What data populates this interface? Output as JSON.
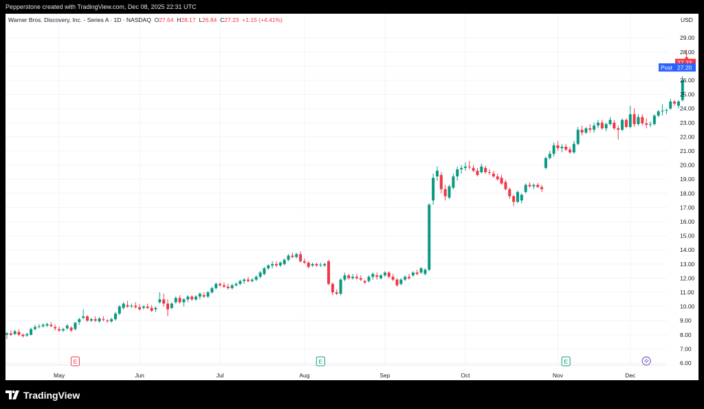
{
  "header": {
    "credit": "Pepperstone created with TradingView.com, Dec 08, 2025 22:31 UTC"
  },
  "legend": {
    "symbol": "Warner Bros. Discovery, Inc. - Series A · 1D · NASDAQ",
    "o_label": "O",
    "o": "27.64",
    "h_label": "H",
    "h": "28.17",
    "l_label": "L",
    "l": "26.84",
    "c_label": "C",
    "c": "27.23",
    "change": "+1.15 (+4.41%)"
  },
  "footer": {
    "brand": "TradingView"
  },
  "colors": {
    "up": "#089981",
    "down": "#f23645",
    "post": "#2962ff",
    "accent": "#7e57c2",
    "grid": "#f0f3fa"
  },
  "chart_data": {
    "type": "candlestick",
    "currency": "USD",
    "ylim": [
      5.5,
      30
    ],
    "yticks": [
      "6.00",
      "7.00",
      "8.00",
      "9.00",
      "10.00",
      "11.00",
      "12.00",
      "13.00",
      "14.00",
      "15.00",
      "16.00",
      "17.00",
      "18.00",
      "19.00",
      "20.00",
      "21.00",
      "22.00",
      "23.00",
      "24.00",
      "25.00",
      "26.00",
      "27.00",
      "28.00",
      "29.00"
    ],
    "xticks": [
      {
        "label": "May",
        "index": 13
      },
      {
        "label": "Jun",
        "index": 33
      },
      {
        "label": "Jul",
        "index": 53
      },
      {
        "label": "Aug",
        "index": 74
      },
      {
        "label": "Sep",
        "index": 94
      },
      {
        "label": "Oct",
        "index": 114
      },
      {
        "label": "Nov",
        "index": 137
      },
      {
        "label": "Dec",
        "index": 155
      }
    ],
    "earnings": [
      {
        "index": 17,
        "label": "E",
        "color": "#f23645"
      },
      {
        "index": 78,
        "label": "E",
        "color": "#089981"
      },
      {
        "index": 139,
        "label": "E",
        "color": "#089981"
      }
    ],
    "dividend_marker": {
      "index": 159
    },
    "last_price": {
      "label": "27.23",
      "value": 27.23
    },
    "post_price": {
      "tag": "Post",
      "label": "27.20",
      "value": 27.2
    },
    "ohlc": [
      [
        8.0,
        8.2,
        7.7,
        8.1
      ],
      [
        8.1,
        8.3,
        7.9,
        8.0
      ],
      [
        8.05,
        8.35,
        8.0,
        8.25
      ],
      [
        8.2,
        8.4,
        7.9,
        8.0
      ],
      [
        8.0,
        8.1,
        7.8,
        7.9
      ],
      [
        7.95,
        8.15,
        7.85,
        8.05
      ],
      [
        8.0,
        8.5,
        7.95,
        8.4
      ],
      [
        8.4,
        8.7,
        8.3,
        8.55
      ],
      [
        8.55,
        8.75,
        8.45,
        8.6
      ],
      [
        8.6,
        8.8,
        8.5,
        8.7
      ],
      [
        8.65,
        8.85,
        8.55,
        8.75
      ],
      [
        8.7,
        8.9,
        8.55,
        8.6
      ],
      [
        8.55,
        8.7,
        8.3,
        8.45
      ],
      [
        8.4,
        8.6,
        8.2,
        8.3
      ],
      [
        8.3,
        8.5,
        8.2,
        8.4
      ],
      [
        8.45,
        8.75,
        8.35,
        8.65
      ],
      [
        8.5,
        8.6,
        8.2,
        8.3
      ],
      [
        8.4,
        8.9,
        8.3,
        8.85
      ],
      [
        8.9,
        9.2,
        8.7,
        9.1
      ],
      [
        9.2,
        9.8,
        9.1,
        9.3
      ],
      [
        9.3,
        9.4,
        8.9,
        9.0
      ],
      [
        9.0,
        9.2,
        8.9,
        9.1
      ],
      [
        9.1,
        9.3,
        8.9,
        9.0
      ],
      [
        8.95,
        9.25,
        8.85,
        9.15
      ],
      [
        9.1,
        9.3,
        8.95,
        9.05
      ],
      [
        9.0,
        9.1,
        8.85,
        8.95
      ],
      [
        8.95,
        9.2,
        8.85,
        9.1
      ],
      [
        9.1,
        9.6,
        9.0,
        9.5
      ],
      [
        9.5,
        10.1,
        9.4,
        10.0
      ],
      [
        9.9,
        10.3,
        9.8,
        10.2
      ],
      [
        10.1,
        10.4,
        9.9,
        10.0
      ],
      [
        10.0,
        10.2,
        9.9,
        10.05
      ],
      [
        10.05,
        10.3,
        9.85,
        9.95
      ],
      [
        9.95,
        10.15,
        9.7,
        9.8
      ],
      [
        9.9,
        10.1,
        9.8,
        10.0
      ],
      [
        10.0,
        10.2,
        9.8,
        9.9
      ],
      [
        9.9,
        10.1,
        9.6,
        9.7
      ],
      [
        9.8,
        10.0,
        9.6,
        9.9
      ],
      [
        10.3,
        11.0,
        10.2,
        10.5
      ],
      [
        10.5,
        10.9,
        10.0,
        10.2
      ],
      [
        10.2,
        10.5,
        9.3,
        9.8
      ],
      [
        9.9,
        10.3,
        9.8,
        10.2
      ],
      [
        10.3,
        10.7,
        10.2,
        10.6
      ],
      [
        10.6,
        10.8,
        10.2,
        10.3
      ],
      [
        10.3,
        10.6,
        10.0,
        10.5
      ],
      [
        10.5,
        10.8,
        10.3,
        10.7
      ],
      [
        10.7,
        10.8,
        10.4,
        10.5
      ],
      [
        10.5,
        10.8,
        10.4,
        10.7
      ],
      [
        10.7,
        11.0,
        10.5,
        10.9
      ],
      [
        10.8,
        11.0,
        10.6,
        10.7
      ],
      [
        10.7,
        11.1,
        10.6,
        11.0
      ],
      [
        11.0,
        11.4,
        10.9,
        11.3
      ],
      [
        11.3,
        11.7,
        11.2,
        11.6
      ],
      [
        11.6,
        11.7,
        11.4,
        11.5
      ],
      [
        11.5,
        11.7,
        11.3,
        11.4
      ],
      [
        11.4,
        11.6,
        11.2,
        11.3
      ],
      [
        11.3,
        11.6,
        11.2,
        11.5
      ],
      [
        11.5,
        11.7,
        11.4,
        11.6
      ],
      [
        11.6,
        11.9,
        11.5,
        11.8
      ],
      [
        11.8,
        12.0,
        11.6,
        11.9
      ],
      [
        11.9,
        12.1,
        11.7,
        11.8
      ],
      [
        11.8,
        12.0,
        11.7,
        11.9
      ],
      [
        11.9,
        12.2,
        11.8,
        12.1
      ],
      [
        12.1,
        12.5,
        12.0,
        12.4
      ],
      [
        12.3,
        12.8,
        12.2,
        12.7
      ],
      [
        12.7,
        13.0,
        12.6,
        12.9
      ],
      [
        12.9,
        13.2,
        12.7,
        13.0
      ],
      [
        13.0,
        13.2,
        12.8,
        12.9
      ],
      [
        12.9,
        13.2,
        12.8,
        13.1
      ],
      [
        13.0,
        13.4,
        12.9,
        13.3
      ],
      [
        13.3,
        13.7,
        13.2,
        13.6
      ],
      [
        13.6,
        13.8,
        13.4,
        13.5
      ],
      [
        13.5,
        13.8,
        13.4,
        13.7
      ],
      [
        13.7,
        13.9,
        13.1,
        13.2
      ],
      [
        13.2,
        13.4,
        13.0,
        13.1
      ],
      [
        13.1,
        13.2,
        12.7,
        12.8
      ],
      [
        12.9,
        13.1,
        12.8,
        13.0
      ],
      [
        13.0,
        13.1,
        12.8,
        12.9
      ],
      [
        12.9,
        13.1,
        12.8,
        12.95
      ],
      [
        12.9,
        13.1,
        12.8,
        13.0
      ],
      [
        13.2,
        13.3,
        11.5,
        11.6
      ],
      [
        11.6,
        11.7,
        10.8,
        11.0
      ],
      [
        11.0,
        11.2,
        10.8,
        10.9
      ],
      [
        10.9,
        12.0,
        10.8,
        11.9
      ],
      [
        11.9,
        12.4,
        11.8,
        12.2
      ],
      [
        12.2,
        12.3,
        11.9,
        12.0
      ],
      [
        12.0,
        12.3,
        11.9,
        12.1
      ],
      [
        12.1,
        12.3,
        11.9,
        12.0
      ],
      [
        12.0,
        12.2,
        11.8,
        11.9
      ],
      [
        11.8,
        11.9,
        11.6,
        11.7
      ],
      [
        11.8,
        12.2,
        11.7,
        12.1
      ],
      [
        12.1,
        12.4,
        11.9,
        12.3
      ],
      [
        12.2,
        12.4,
        11.9,
        12.1
      ],
      [
        12.0,
        12.3,
        11.9,
        12.2
      ],
      [
        12.2,
        12.5,
        12.1,
        12.4
      ],
      [
        12.4,
        12.5,
        12.0,
        12.1
      ],
      [
        12.1,
        12.3,
        11.8,
        11.9
      ],
      [
        11.9,
        12.0,
        11.4,
        11.5
      ],
      [
        11.6,
        12.0,
        11.5,
        11.9
      ],
      [
        11.9,
        12.2,
        11.8,
        12.1
      ],
      [
        12.1,
        12.3,
        11.9,
        12.0
      ],
      [
        12.2,
        12.5,
        12.1,
        12.4
      ],
      [
        12.4,
        12.6,
        12.2,
        12.3
      ],
      [
        12.4,
        12.8,
        12.3,
        12.7
      ],
      [
        12.3,
        12.7,
        12.2,
        12.6
      ],
      [
        12.6,
        17.3,
        12.5,
        17.2
      ],
      [
        17.5,
        19.4,
        17.2,
        19.1
      ],
      [
        19.2,
        19.9,
        18.9,
        19.6
      ],
      [
        19.3,
        19.5,
        18.0,
        18.3
      ],
      [
        18.3,
        18.6,
        17.5,
        17.8
      ],
      [
        17.7,
        18.6,
        17.6,
        18.5
      ],
      [
        18.4,
        19.4,
        18.3,
        19.2
      ],
      [
        19.2,
        19.9,
        18.9,
        19.7
      ],
      [
        19.7,
        20.0,
        19.4,
        19.8
      ],
      [
        19.8,
        20.2,
        19.6,
        19.9
      ],
      [
        19.9,
        20.3,
        19.7,
        19.85
      ],
      [
        19.8,
        20.0,
        19.5,
        19.6
      ],
      [
        19.6,
        19.8,
        19.2,
        19.3
      ],
      [
        19.5,
        20.1,
        19.4,
        19.9
      ],
      [
        19.8,
        19.95,
        19.4,
        19.5
      ],
      [
        19.5,
        19.7,
        19.3,
        19.45
      ],
      [
        19.4,
        19.6,
        19.1,
        19.2
      ],
      [
        19.2,
        19.4,
        18.9,
        19.0
      ],
      [
        19.1,
        19.3,
        18.6,
        18.7
      ],
      [
        18.8,
        18.95,
        18.2,
        18.3
      ],
      [
        18.3,
        18.4,
        17.6,
        17.8
      ],
      [
        17.8,
        17.9,
        17.1,
        17.4
      ],
      [
        17.4,
        18.2,
        17.3,
        18.1
      ],
      [
        17.5,
        18.0,
        17.3,
        17.9
      ],
      [
        18.1,
        18.7,
        18.0,
        18.6
      ],
      [
        18.6,
        18.8,
        18.4,
        18.5
      ],
      [
        18.5,
        18.7,
        18.3,
        18.6
      ],
      [
        18.6,
        18.75,
        18.4,
        18.45
      ],
      [
        18.45,
        18.6,
        18.1,
        18.3
      ],
      [
        19.8,
        20.6,
        19.7,
        20.5
      ],
      [
        20.5,
        21.0,
        20.4,
        20.8
      ],
      [
        20.8,
        21.6,
        20.6,
        21.4
      ],
      [
        21.4,
        21.7,
        21.0,
        21.2
      ],
      [
        21.2,
        21.5,
        20.9,
        21.3
      ],
      [
        21.3,
        21.5,
        21.0,
        21.1
      ],
      [
        21.1,
        21.3,
        20.8,
        20.9
      ],
      [
        20.9,
        21.7,
        20.8,
        21.5
      ],
      [
        21.5,
        22.7,
        21.4,
        22.5
      ],
      [
        22.5,
        22.8,
        22.1,
        22.3
      ],
      [
        22.3,
        22.7,
        22.2,
        22.6
      ],
      [
        22.6,
        22.9,
        22.3,
        22.5
      ],
      [
        22.5,
        23.0,
        22.3,
        22.8
      ],
      [
        22.8,
        23.2,
        22.6,
        23.0
      ],
      [
        23.0,
        23.2,
        22.5,
        22.6
      ],
      [
        22.6,
        23.0,
        22.4,
        22.9
      ],
      [
        22.9,
        23.4,
        22.8,
        23.2
      ],
      [
        23.0,
        23.2,
        22.5,
        22.6
      ],
      [
        22.6,
        22.8,
        21.8,
        22.5
      ],
      [
        22.5,
        23.3,
        22.4,
        23.2
      ],
      [
        23.2,
        23.3,
        22.6,
        22.7
      ],
      [
        22.7,
        24.2,
        22.6,
        23.6
      ],
      [
        23.6,
        24.0,
        22.7,
        22.9
      ],
      [
        22.9,
        23.6,
        22.8,
        23.4
      ],
      [
        23.4,
        23.6,
        22.8,
        22.95
      ],
      [
        22.95,
        23.3,
        22.6,
        22.85
      ],
      [
        22.85,
        23.1,
        22.7,
        22.9
      ],
      [
        22.9,
        23.6,
        22.8,
        23.5
      ],
      [
        23.5,
        23.9,
        23.4,
        23.8
      ],
      [
        23.8,
        24.3,
        23.5,
        23.85
      ],
      [
        23.9,
        24.0,
        23.6,
        23.9
      ],
      [
        24.0,
        24.7,
        23.9,
        24.5
      ],
      [
        24.5,
        24.6,
        24.2,
        24.35
      ],
      [
        24.2,
        24.6,
        24.0,
        24.5
      ],
      [
        24.6,
        26.3,
        24.5,
        26.0
      ],
      [
        27.64,
        28.17,
        26.84,
        27.23
      ]
    ]
  }
}
